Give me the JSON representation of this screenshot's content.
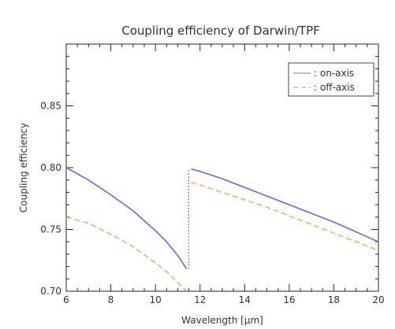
{
  "chart_data": {
    "type": "line",
    "title": "Coupling efficiency of Darwin/TPF",
    "xlabel": "Wavelength [μm]",
    "ylabel": "Coupling efficiency",
    "xlim": [
      6,
      20
    ],
    "ylim": [
      0.7,
      0.9
    ],
    "x_ticks": [
      6,
      8,
      10,
      12,
      14,
      16,
      18,
      20
    ],
    "x_tick_labels": [
      "6",
      "8",
      "10",
      "12",
      "14",
      "16",
      "18",
      "20"
    ],
    "y_ticks": [
      0.7,
      0.75,
      0.8,
      0.85
    ],
    "y_tick_labels": [
      "0.70",
      "0.75",
      "0.80",
      "0.85"
    ],
    "grid": false,
    "legend_position": "top-right",
    "legend": [
      {
        "label": ": on-axis",
        "style": "solid"
      },
      {
        "label": ": off-axis",
        "style": "dashed"
      }
    ],
    "series": [
      {
        "name": "on-axis",
        "color": "#6a6ac8",
        "style": "solid",
        "segments": [
          {
            "x": [
              6,
              7,
              8,
              9,
              10,
              10.5,
              11,
              11.4
            ],
            "y": [
              0.8,
              0.79,
              0.778,
              0.765,
              0.749,
              0.74,
              0.729,
              0.718
            ]
          },
          {
            "x": [
              11.6,
              12,
              13,
              14,
              15,
              16,
              17,
              18,
              19,
              20
            ],
            "y": [
              0.799,
              0.797,
              0.791,
              0.784,
              0.777,
              0.77,
              0.763,
              0.756,
              0.748,
              0.74
            ]
          }
        ]
      },
      {
        "name": "off-axis",
        "color": "#f0a050",
        "style": "dashed",
        "segments": [
          {
            "x": [
              6,
              7,
              8,
              9,
              10,
              10.5,
              11,
              11.4
            ],
            "y": [
              0.76,
              0.755,
              0.746,
              0.736,
              0.723,
              0.716,
              0.707,
              0.7
            ]
          },
          {
            "x": [
              11.6,
              12,
              13,
              14,
              15,
              16,
              17,
              18,
              19,
              20
            ],
            "y": [
              0.788,
              0.786,
              0.78,
              0.774,
              0.768,
              0.761,
              0.754,
              0.747,
              0.74,
              0.733
            ]
          }
        ]
      }
    ],
    "connector": {
      "color": "#444444",
      "style": "dotted",
      "x": 11.5,
      "y": [
        0.718,
        0.799
      ]
    }
  }
}
